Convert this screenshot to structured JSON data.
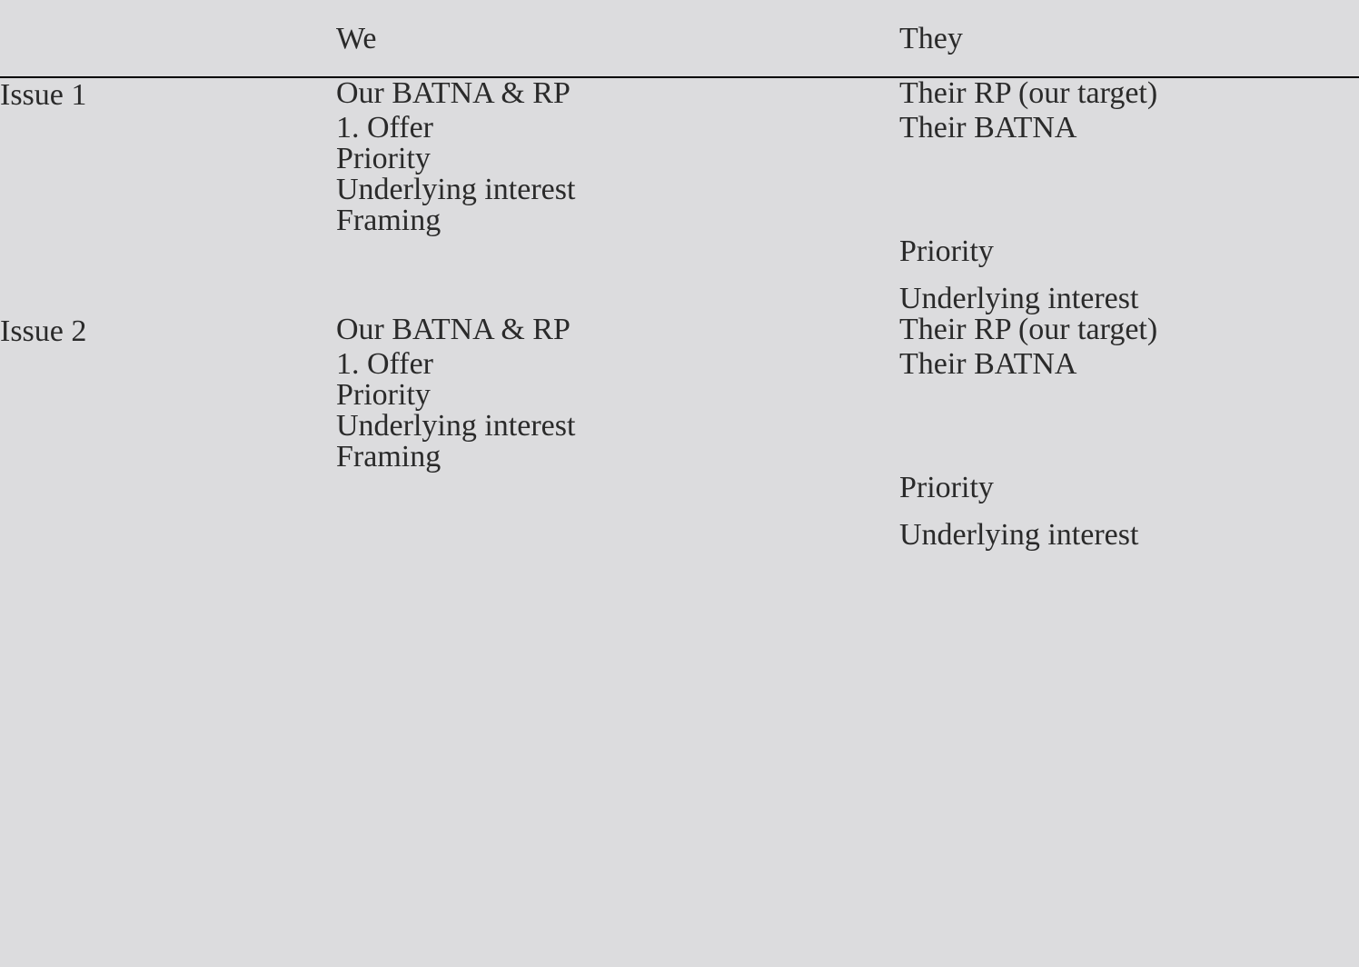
{
  "background_color": "#dcdcde",
  "text_color": "#2a2a2a",
  "border_color": "#000000",
  "font_family": "Georgia, serif",
  "font_size_pt": 26,
  "columns": {
    "label": "",
    "we": "We",
    "they": "They"
  },
  "issues": [
    {
      "label": "Issue 1",
      "we": [
        "Our BATNA & RP",
        "1. Offer",
        "Priority",
        "Underlying interest",
        "Framing"
      ],
      "they_top": [
        "Their RP (our target)",
        "Their BATNA"
      ],
      "they_bottom": [
        "Priority",
        "Underlying interest"
      ]
    },
    {
      "label": "Issue 2",
      "we": [
        "Our BATNA & RP",
        "1. Offer",
        "Priority",
        "Underlying interest",
        "Framing"
      ],
      "they_top": [
        "Their RP (our target)",
        "Their BATNA"
      ],
      "they_bottom": [
        "Priority",
        "Underlying interest"
      ]
    }
  ]
}
